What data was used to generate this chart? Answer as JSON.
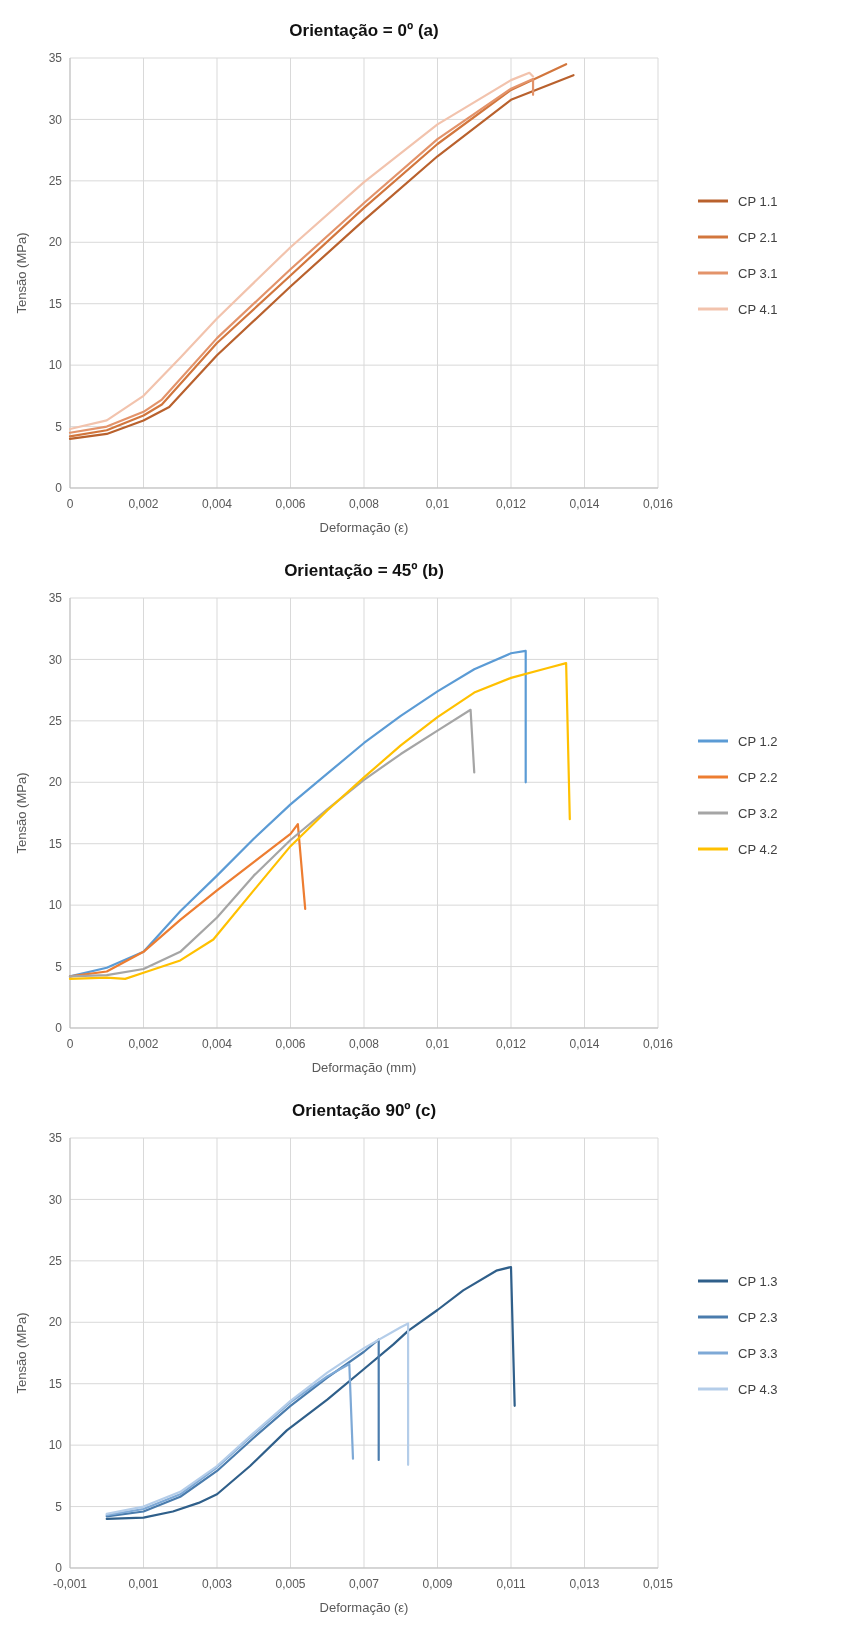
{
  "chart_data": [
    {
      "type": "line",
      "title": "Orientação = 0º (a)",
      "xlabel": "Deformação (ε)",
      "ylabel": "Tensão (MPa)",
      "xlim": [
        0,
        0.016
      ],
      "ylim": [
        0,
        35
      ],
      "xticks": [
        0,
        {
          "value": 0.002,
          "label": "0,002"
        },
        {
          "value": 0.004,
          "label": "0,004"
        },
        {
          "value": 0.006,
          "label": "0,006"
        },
        {
          "value": 0.008,
          "label": "0,008"
        },
        {
          "value": 0.01,
          "label": "0,01"
        },
        {
          "value": 0.012,
          "label": "0,012"
        },
        {
          "value": 0.014,
          "label": "0,014"
        },
        {
          "value": 0.016,
          "label": "0,016"
        }
      ],
      "yticks": [
        0,
        5,
        10,
        15,
        20,
        25,
        30,
        35
      ],
      "grid": true,
      "legend": "right",
      "marker": "none",
      "line_style": "solid",
      "series": [
        {
          "name": "CP 1.1",
          "color": "#b9612d",
          "x": [
            0,
            0.001,
            0.002,
            0.0027,
            0.004,
            0.006,
            0.008,
            0.01,
            0.012,
            0.0137
          ],
          "values": [
            4.0,
            4.4,
            5.5,
            6.6,
            10.8,
            16.4,
            21.8,
            27.0,
            31.6,
            33.6
          ]
        },
        {
          "name": "CP 2.1",
          "color": "#d2763d",
          "x": [
            0,
            0.001,
            0.002,
            0.0025,
            0.004,
            0.006,
            0.008,
            0.01,
            0.012,
            0.0135
          ],
          "values": [
            4.2,
            4.7,
            5.9,
            6.8,
            11.8,
            17.3,
            22.8,
            28.0,
            32.4,
            34.5
          ]
        },
        {
          "name": "CP 3.1",
          "color": "#e3936a",
          "x": [
            0,
            0.001,
            0.002,
            0.0025,
            0.004,
            0.006,
            0.008,
            0.01,
            0.012,
            0.0126,
            0.0126
          ],
          "values": [
            4.5,
            5.0,
            6.2,
            7.2,
            12.2,
            17.8,
            23.2,
            28.4,
            32.5,
            33.3,
            32.0
          ]
        },
        {
          "name": "CP 4.1",
          "color": "#f2c3ad",
          "x": [
            0,
            0.001,
            0.002,
            0.003,
            0.004,
            0.006,
            0.008,
            0.01,
            0.012,
            0.0125,
            0.0126
          ],
          "values": [
            4.8,
            5.5,
            7.5,
            10.6,
            13.8,
            19.6,
            24.9,
            29.6,
            33.2,
            33.8,
            33.5
          ]
        }
      ]
    },
    {
      "type": "line",
      "title": "Orientação = 45º (b)",
      "xlabel": "Deformação (mm)",
      "ylabel": "Tensão (MPa)",
      "xlim": [
        0,
        0.016
      ],
      "ylim": [
        0,
        35
      ],
      "xticks": [
        0,
        {
          "value": 0.002,
          "label": "0,002"
        },
        {
          "value": 0.004,
          "label": "0,004"
        },
        {
          "value": 0.006,
          "label": "0,006"
        },
        {
          "value": 0.008,
          "label": "0,008"
        },
        {
          "value": 0.01,
          "label": "0,01"
        },
        {
          "value": 0.012,
          "label": "0,012"
        },
        {
          "value": 0.014,
          "label": "0,014"
        },
        {
          "value": 0.016,
          "label": "0,016"
        }
      ],
      "yticks": [
        0,
        5,
        10,
        15,
        20,
        25,
        30,
        35
      ],
      "grid": true,
      "legend": "right",
      "marker": "none",
      "line_style": "solid",
      "series": [
        {
          "name": "CP 1.2",
          "color": "#5b9bd5",
          "x": [
            0,
            0.001,
            0.002,
            0.003,
            0.004,
            0.005,
            0.006,
            0.007,
            0.008,
            0.009,
            0.01,
            0.011,
            0.012,
            0.0124,
            0.0124
          ],
          "values": [
            4.2,
            4.9,
            6.2,
            9.5,
            12.4,
            15.4,
            18.2,
            20.7,
            23.2,
            25.4,
            27.4,
            29.2,
            30.5,
            30.7,
            20.0
          ]
        },
        {
          "name": "CP 2.2",
          "color": "#ed7d31",
          "x": [
            0,
            0.001,
            0.002,
            0.003,
            0.004,
            0.005,
            0.006,
            0.0062,
            0.0064
          ],
          "values": [
            4.2,
            4.6,
            6.2,
            8.8,
            11.2,
            13.5,
            15.8,
            16.6,
            9.7
          ]
        },
        {
          "name": "CP 3.2",
          "color": "#a5a5a5",
          "x": [
            0,
            0.001,
            0.002,
            0.003,
            0.004,
            0.005,
            0.006,
            0.007,
            0.008,
            0.009,
            0.01,
            0.0109,
            0.011
          ],
          "values": [
            4.2,
            4.3,
            4.8,
            6.2,
            9.0,
            12.4,
            15.3,
            17.8,
            20.2,
            22.3,
            24.2,
            25.9,
            20.8
          ]
        },
        {
          "name": "CP 4.2",
          "color": "#ffc000",
          "x": [
            0,
            0.001,
            0.0015,
            0.002,
            0.003,
            0.0039,
            0.005,
            0.006,
            0.007,
            0.008,
            0.009,
            0.01,
            0.011,
            0.012,
            0.013,
            0.0135,
            0.0136
          ],
          "values": [
            4.0,
            4.1,
            4.0,
            4.5,
            5.5,
            7.2,
            11.2,
            14.8,
            17.7,
            20.4,
            23.0,
            25.3,
            27.3,
            28.5,
            29.3,
            29.7,
            17.0
          ]
        }
      ]
    },
    {
      "type": "line",
      "title": "Orientação 90º (c)",
      "xlabel": "Deformação (ε)",
      "ylabel": "Tensão (MPa)",
      "xlim": [
        -0.001,
        0.015
      ],
      "ylim": [
        0,
        35
      ],
      "xticks": [
        {
          "value": -0.001,
          "label": "-0,001"
        },
        {
          "value": 0.001,
          "label": "0,001"
        },
        {
          "value": 0.003,
          "label": "0,003"
        },
        {
          "value": 0.005,
          "label": "0,005"
        },
        {
          "value": 0.007,
          "label": "0,007"
        },
        {
          "value": 0.009,
          "label": "0,009"
        },
        {
          "value": 0.011,
          "label": "0,011"
        },
        {
          "value": 0.013,
          "label": "0,013"
        },
        {
          "value": 0.015,
          "label": "0,015"
        }
      ],
      "yticks": [
        0,
        5,
        10,
        15,
        20,
        25,
        30,
        35
      ],
      "grid": true,
      "legend": "right",
      "marker": "none",
      "line_style": "solid",
      "series": [
        {
          "name": "CP 1.3",
          "color": "#2f5f8a",
          "x": [
            0,
            0.001,
            0.0018,
            0.0025,
            0.003,
            0.0039,
            0.0049,
            0.006,
            0.007,
            0.0078,
            0.0082,
            0.009,
            0.0097,
            0.0106,
            0.011,
            0.0111
          ],
          "values": [
            4.0,
            4.1,
            4.6,
            5.3,
            6.0,
            8.3,
            11.2,
            13.7,
            16.2,
            18.2,
            19.3,
            21.0,
            22.6,
            24.2,
            24.5,
            13.2
          ]
        },
        {
          "name": "CP 2.3",
          "color": "#4a7cad",
          "x": [
            0,
            0.001,
            0.002,
            0.003,
            0.004,
            0.005,
            0.006,
            0.007,
            0.0074,
            0.0074
          ],
          "values": [
            4.2,
            4.6,
            5.8,
            7.9,
            10.6,
            13.2,
            15.5,
            17.6,
            18.6,
            8.8
          ]
        },
        {
          "name": "CP 3.3",
          "color": "#7ea9d6",
          "x": [
            0,
            0.001,
            0.002,
            0.003,
            0.004,
            0.005,
            0.006,
            0.0066,
            0.0067
          ],
          "values": [
            4.3,
            4.8,
            6.0,
            8.2,
            10.9,
            13.5,
            15.6,
            16.6,
            8.9
          ]
        },
        {
          "name": "CP 4.3",
          "color": "#b4cde9",
          "x": [
            0,
            0.001,
            0.002,
            0.003,
            0.004,
            0.005,
            0.006,
            0.007,
            0.008,
            0.0082,
            0.0082
          ],
          "values": [
            4.4,
            5.0,
            6.2,
            8.3,
            11.0,
            13.6,
            15.9,
            17.9,
            19.6,
            19.9,
            8.4
          ]
        }
      ]
    }
  ]
}
